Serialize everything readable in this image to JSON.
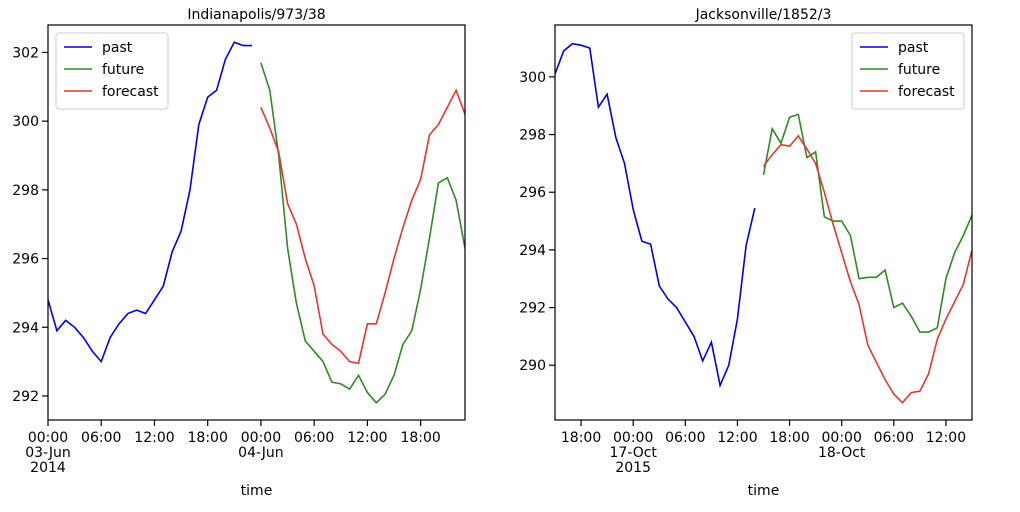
{
  "chart_data": [
    {
      "type": "line",
      "title": "Indianapolis/973/38",
      "x_label": "time",
      "xlim": [
        "2014-06-03T00:00",
        "2014-06-04T23:00"
      ],
      "xticks": [
        {
          "value": "2014-06-03T00:00",
          "label": [
            "00:00",
            "03-Jun",
            "2014"
          ]
        },
        {
          "value": "2014-06-03T06:00",
          "label": [
            "06:00"
          ]
        },
        {
          "value": "2014-06-03T12:00",
          "label": [
            "12:00"
          ]
        },
        {
          "value": "2014-06-03T18:00",
          "label": [
            "18:00"
          ]
        },
        {
          "value": "2014-06-04T00:00",
          "label": [
            "00:00",
            "04-Jun"
          ]
        },
        {
          "value": "2014-06-04T06:00",
          "label": [
            "06:00"
          ]
        },
        {
          "value": "2014-06-04T12:00",
          "label": [
            "12:00"
          ]
        },
        {
          "value": "2014-06-04T18:00",
          "label": [
            "18:00"
          ]
        }
      ],
      "ylim": [
        291.3,
        302.8
      ],
      "yticks": [
        292,
        294,
        296,
        298,
        300,
        302
      ],
      "legend": "upper left",
      "series": [
        {
          "name": "past",
          "color": "#0000e6",
          "x": [
            "2014-06-03T00:00",
            "2014-06-03T01:00",
            "2014-06-03T02:00",
            "2014-06-03T03:00",
            "2014-06-03T04:00",
            "2014-06-03T05:00",
            "2014-06-03T06:00",
            "2014-06-03T07:00",
            "2014-06-03T08:00",
            "2014-06-03T09:00",
            "2014-06-03T10:00",
            "2014-06-03T11:00",
            "2014-06-03T12:00",
            "2014-06-03T13:00",
            "2014-06-03T14:00",
            "2014-06-03T15:00",
            "2014-06-03T16:00",
            "2014-06-03T17:00",
            "2014-06-03T18:00",
            "2014-06-03T19:00",
            "2014-06-03T20:00",
            "2014-06-03T21:00",
            "2014-06-03T22:00",
            "2014-06-03T23:00"
          ],
          "values": [
            294.8,
            293.9,
            294.2,
            294.0,
            293.7,
            293.3,
            293.0,
            293.7,
            294.1,
            294.4,
            294.5,
            294.4,
            294.8,
            295.2,
            296.2,
            296.8,
            298.0,
            299.9,
            300.7,
            300.9,
            301.8,
            302.3,
            302.2,
            302.2
          ]
        },
        {
          "name": "future",
          "color": "#2e8b22",
          "x": [
            "2014-06-04T00:00",
            "2014-06-04T01:00",
            "2014-06-04T02:00",
            "2014-06-04T03:00",
            "2014-06-04T04:00",
            "2014-06-04T05:00",
            "2014-06-04T06:00",
            "2014-06-04T07:00",
            "2014-06-04T08:00",
            "2014-06-04T09:00",
            "2014-06-04T10:00",
            "2014-06-04T11:00",
            "2014-06-04T12:00",
            "2014-06-04T13:00",
            "2014-06-04T14:00",
            "2014-06-04T15:00",
            "2014-06-04T16:00",
            "2014-06-04T17:00",
            "2014-06-04T18:00",
            "2014-06-04T19:00",
            "2014-06-04T20:00",
            "2014-06-04T21:00",
            "2014-06-04T22:00",
            "2014-06-04T23:00"
          ],
          "values": [
            301.7,
            300.9,
            299.0,
            296.3,
            294.7,
            293.6,
            293.3,
            293.0,
            292.4,
            292.35,
            292.2,
            292.6,
            292.1,
            291.8,
            292.05,
            292.6,
            293.5,
            293.9,
            295.1,
            296.6,
            298.2,
            298.35,
            297.7,
            296.3
          ]
        },
        {
          "name": "forecast",
          "color": "#e0392b",
          "x": [
            "2014-06-04T00:00",
            "2014-06-04T01:00",
            "2014-06-04T02:00",
            "2014-06-04T03:00",
            "2014-06-04T04:00",
            "2014-06-04T05:00",
            "2014-06-04T06:00",
            "2014-06-04T07:00",
            "2014-06-04T08:00",
            "2014-06-04T09:00",
            "2014-06-04T10:00",
            "2014-06-04T11:00",
            "2014-06-04T12:00",
            "2014-06-04T13:00",
            "2014-06-04T14:00",
            "2014-06-04T15:00",
            "2014-06-04T16:00",
            "2014-06-04T17:00",
            "2014-06-04T18:00",
            "2014-06-04T19:00",
            "2014-06-04T20:00",
            "2014-06-04T21:00",
            "2014-06-04T22:00",
            "2014-06-04T23:00"
          ],
          "values": [
            300.4,
            299.8,
            299.1,
            297.6,
            297.0,
            296.0,
            295.2,
            293.8,
            293.5,
            293.3,
            293.0,
            292.95,
            294.1,
            294.1,
            295.0,
            296.0,
            296.9,
            297.7,
            298.3,
            299.6,
            299.9,
            300.4,
            300.9,
            300.2
          ]
        }
      ]
    },
    {
      "type": "line",
      "title": "Jacksonville/1852/3",
      "x_label": "time",
      "xlim": [
        "2015-10-16T15:00",
        "2015-10-18T15:00"
      ],
      "xticks": [
        {
          "value": "2015-10-16T18:00",
          "label": [
            "18:00"
          ]
        },
        {
          "value": "2015-10-17T00:00",
          "label": [
            "00:00",
            "17-Oct",
            "2015"
          ]
        },
        {
          "value": "2015-10-17T06:00",
          "label": [
            "06:00"
          ]
        },
        {
          "value": "2015-10-17T12:00",
          "label": [
            "12:00"
          ]
        },
        {
          "value": "2015-10-17T18:00",
          "label": [
            "18:00"
          ]
        },
        {
          "value": "2015-10-18T00:00",
          "label": [
            "00:00",
            "18-Oct"
          ]
        },
        {
          "value": "2015-10-18T06:00",
          "label": [
            "06:00"
          ]
        },
        {
          "value": "2015-10-18T12:00",
          "label": [
            "12:00"
          ]
        }
      ],
      "ylim": [
        288.1,
        301.8
      ],
      "yticks": [
        290,
        292,
        294,
        296,
        298,
        300
      ],
      "legend": "upper right",
      "series": [
        {
          "name": "past",
          "color": "#0000e6",
          "x": [
            "2015-10-16T15:00",
            "2015-10-16T16:00",
            "2015-10-16T17:00",
            "2015-10-16T18:00",
            "2015-10-16T19:00",
            "2015-10-16T20:00",
            "2015-10-16T21:00",
            "2015-10-16T22:00",
            "2015-10-16T23:00",
            "2015-10-17T00:00",
            "2015-10-17T01:00",
            "2015-10-17T02:00",
            "2015-10-17T03:00",
            "2015-10-17T04:00",
            "2015-10-17T05:00",
            "2015-10-17T06:00",
            "2015-10-17T07:00",
            "2015-10-17T08:00",
            "2015-10-17T09:00",
            "2015-10-17T10:00",
            "2015-10-17T11:00",
            "2015-10-17T12:00",
            "2015-10-17T13:00",
            "2015-10-17T14:00"
          ],
          "values": [
            300.1,
            300.9,
            301.15,
            301.1,
            301.0,
            298.95,
            299.4,
            297.9,
            297.0,
            295.4,
            294.3,
            294.2,
            292.75,
            292.3,
            292.0,
            291.5,
            291.0,
            290.15,
            290.8,
            289.3,
            290.0,
            291.6,
            294.15,
            295.45
          ]
        },
        {
          "name": "future",
          "color": "#2e8b22",
          "x": [
            "2015-10-17T15:00",
            "2015-10-17T16:00",
            "2015-10-17T17:00",
            "2015-10-17T18:00",
            "2015-10-17T19:00",
            "2015-10-17T20:00",
            "2015-10-17T21:00",
            "2015-10-17T22:00",
            "2015-10-17T23:00",
            "2015-10-18T00:00",
            "2015-10-18T01:00",
            "2015-10-18T02:00",
            "2015-10-18T03:00",
            "2015-10-18T04:00",
            "2015-10-18T05:00",
            "2015-10-18T06:00",
            "2015-10-18T07:00",
            "2015-10-18T08:00",
            "2015-10-18T09:00",
            "2015-10-18T10:00",
            "2015-10-18T11:00",
            "2015-10-18T12:00",
            "2015-10-18T13:00",
            "2015-10-18T14:00",
            "2015-10-18T15:00"
          ],
          "values": [
            296.6,
            298.2,
            297.7,
            298.6,
            298.7,
            297.2,
            297.4,
            295.15,
            295.0,
            295.0,
            294.5,
            293.0,
            293.05,
            293.05,
            293.3,
            292.0,
            292.15,
            291.7,
            291.15,
            291.15,
            291.3,
            293.0,
            293.9,
            294.5,
            295.2
          ]
        },
        {
          "name": "forecast",
          "color": "#e0392b",
          "x": [
            "2015-10-17T15:00",
            "2015-10-17T16:00",
            "2015-10-17T17:00",
            "2015-10-17T18:00",
            "2015-10-17T19:00",
            "2015-10-17T20:00",
            "2015-10-17T21:00",
            "2015-10-17T22:00",
            "2015-10-17T23:00",
            "2015-10-18T00:00",
            "2015-10-18T01:00",
            "2015-10-18T02:00",
            "2015-10-18T03:00",
            "2015-10-18T04:00",
            "2015-10-18T05:00",
            "2015-10-18T06:00",
            "2015-10-18T07:00",
            "2015-10-18T08:00",
            "2015-10-18T09:00",
            "2015-10-18T10:00",
            "2015-10-18T11:00",
            "2015-10-18T12:00",
            "2015-10-18T13:00",
            "2015-10-18T14:00",
            "2015-10-18T15:00"
          ],
          "values": [
            296.9,
            297.3,
            297.65,
            297.6,
            297.95,
            297.5,
            297.0,
            296.0,
            294.9,
            293.9,
            292.9,
            292.1,
            290.7,
            290.1,
            289.5,
            289.0,
            288.7,
            289.05,
            289.1,
            289.7,
            290.9,
            291.6,
            292.2,
            292.8,
            294.0
          ]
        }
      ]
    }
  ]
}
